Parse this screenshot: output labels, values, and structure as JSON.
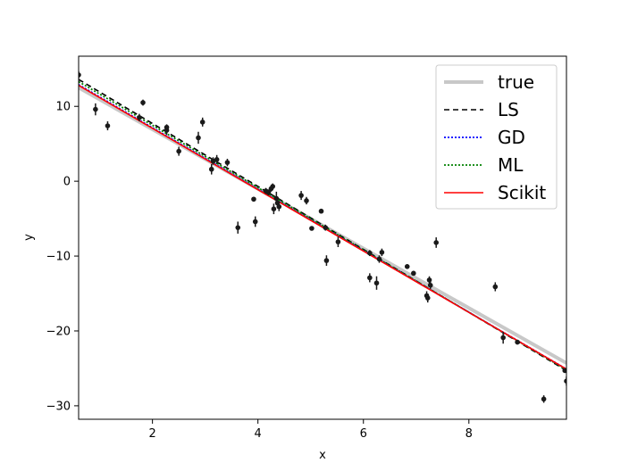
{
  "chart_data": {
    "type": "scatter",
    "xlabel": "x",
    "ylabel": "y",
    "xlim": [
      0.6,
      9.85
    ],
    "ylim": [
      -31.8,
      16.7
    ],
    "xticks": [
      2,
      4,
      6,
      8
    ],
    "yticks": [
      10,
      0,
      -10,
      -20,
      -30
    ],
    "ytick_labels": [
      "10",
      "0",
      "−10",
      "−20",
      "−30"
    ],
    "grid": false,
    "legend_position": "top-right",
    "points": [
      {
        "x": 0.6,
        "y": 14.2,
        "err": 0.5
      },
      {
        "x": 0.92,
        "y": 9.6,
        "err": 0.8
      },
      {
        "x": 1.15,
        "y": 7.4,
        "err": 0.6
      },
      {
        "x": 1.75,
        "y": 8.5,
        "err": 0.5
      },
      {
        "x": 1.82,
        "y": 10.5,
        "err": 0.4
      },
      {
        "x": 2.27,
        "y": 6.8,
        "err": 0.6
      },
      {
        "x": 2.27,
        "y": 7.2,
        "err": 0.4
      },
      {
        "x": 2.5,
        "y": 4.0,
        "err": 0.6
      },
      {
        "x": 2.87,
        "y": 5.8,
        "err": 0.8
      },
      {
        "x": 2.95,
        "y": 7.9,
        "err": 0.6
      },
      {
        "x": 3.12,
        "y": 1.6,
        "err": 0.7
      },
      {
        "x": 3.15,
        "y": 2.7,
        "err": 0.5
      },
      {
        "x": 3.22,
        "y": 2.9,
        "err": 0.6
      },
      {
        "x": 3.42,
        "y": 2.5,
        "err": 0.5
      },
      {
        "x": 3.62,
        "y": -6.2,
        "err": 0.8
      },
      {
        "x": 3.92,
        "y": -2.4,
        "err": 0.3
      },
      {
        "x": 3.95,
        "y": -5.4,
        "err": 0.7
      },
      {
        "x": 4.15,
        "y": -1.3,
        "err": 0.4
      },
      {
        "x": 4.2,
        "y": -1.5,
        "err": 0.4
      },
      {
        "x": 4.25,
        "y": -1.0,
        "err": 0.4
      },
      {
        "x": 4.28,
        "y": -0.7,
        "err": 0.4
      },
      {
        "x": 4.3,
        "y": -3.7,
        "err": 0.7
      },
      {
        "x": 4.35,
        "y": -2.3,
        "err": 0.9
      },
      {
        "x": 4.37,
        "y": -2.9,
        "err": 0.7
      },
      {
        "x": 4.4,
        "y": -3.4,
        "err": 0.6
      },
      {
        "x": 4.82,
        "y": -1.9,
        "err": 0.6
      },
      {
        "x": 4.92,
        "y": -2.6,
        "err": 0.5
      },
      {
        "x": 5.02,
        "y": -6.3,
        "err": 0.3
      },
      {
        "x": 5.2,
        "y": -4.0,
        "err": 0.3
      },
      {
        "x": 5.28,
        "y": -6.2,
        "err": 0.4
      },
      {
        "x": 5.3,
        "y": -10.6,
        "err": 0.7
      },
      {
        "x": 5.52,
        "y": -8.1,
        "err": 0.7
      },
      {
        "x": 6.12,
        "y": -12.9,
        "err": 0.6
      },
      {
        "x": 6.12,
        "y": -9.6,
        "err": 0.4
      },
      {
        "x": 6.25,
        "y": -13.6,
        "err": 0.9
      },
      {
        "x": 6.3,
        "y": -10.4,
        "err": 0.5
      },
      {
        "x": 6.35,
        "y": -9.5,
        "err": 0.5
      },
      {
        "x": 6.83,
        "y": -11.4,
        "err": 0.3
      },
      {
        "x": 6.95,
        "y": -12.3,
        "err": 0.3
      },
      {
        "x": 7.2,
        "y": -15.3,
        "err": 0.6
      },
      {
        "x": 7.22,
        "y": -15.6,
        "err": 0.6
      },
      {
        "x": 7.25,
        "y": -13.2,
        "err": 0.5
      },
      {
        "x": 7.27,
        "y": -13.9,
        "err": 0.5
      },
      {
        "x": 7.38,
        "y": -8.2,
        "err": 0.7
      },
      {
        "x": 8.5,
        "y": -14.1,
        "err": 0.6
      },
      {
        "x": 8.65,
        "y": -20.9,
        "err": 0.8
      },
      {
        "x": 8.92,
        "y": -21.5,
        "err": 0.3
      },
      {
        "x": 9.42,
        "y": -29.1,
        "err": 0.5
      },
      {
        "x": 9.82,
        "y": -25.3,
        "err": 0.3
      },
      {
        "x": 9.85,
        "y": -26.7,
        "err": 0.6
      }
    ],
    "lines": [
      {
        "name": "true",
        "x": [
          0.6,
          9.85
        ],
        "y": [
          12.5,
          -24.3
        ],
        "color": "#c8c8c8",
        "width": 4,
        "dash": ""
      },
      {
        "name": "LS",
        "x": [
          0.6,
          9.85
        ],
        "y": [
          13.6,
          -25.3
        ],
        "color": "#000000",
        "width": 1.6,
        "dash": "6,4"
      },
      {
        "name": "GD",
        "x": [
          0.6,
          9.85
        ],
        "y": [
          12.9,
          -25.1
        ],
        "color": "#0000ff",
        "width": 1.8,
        "dash": "2,2"
      },
      {
        "name": "ML",
        "x": [
          0.6,
          9.85
        ],
        "y": [
          13.3,
          -25.2
        ],
        "color": "#008000",
        "width": 1.8,
        "dash": "2,2"
      },
      {
        "name": "Scikit",
        "x": [
          0.6,
          9.85
        ],
        "y": [
          12.8,
          -25.1
        ],
        "color": "#ff0000",
        "width": 1.6,
        "dash": ""
      }
    ]
  }
}
